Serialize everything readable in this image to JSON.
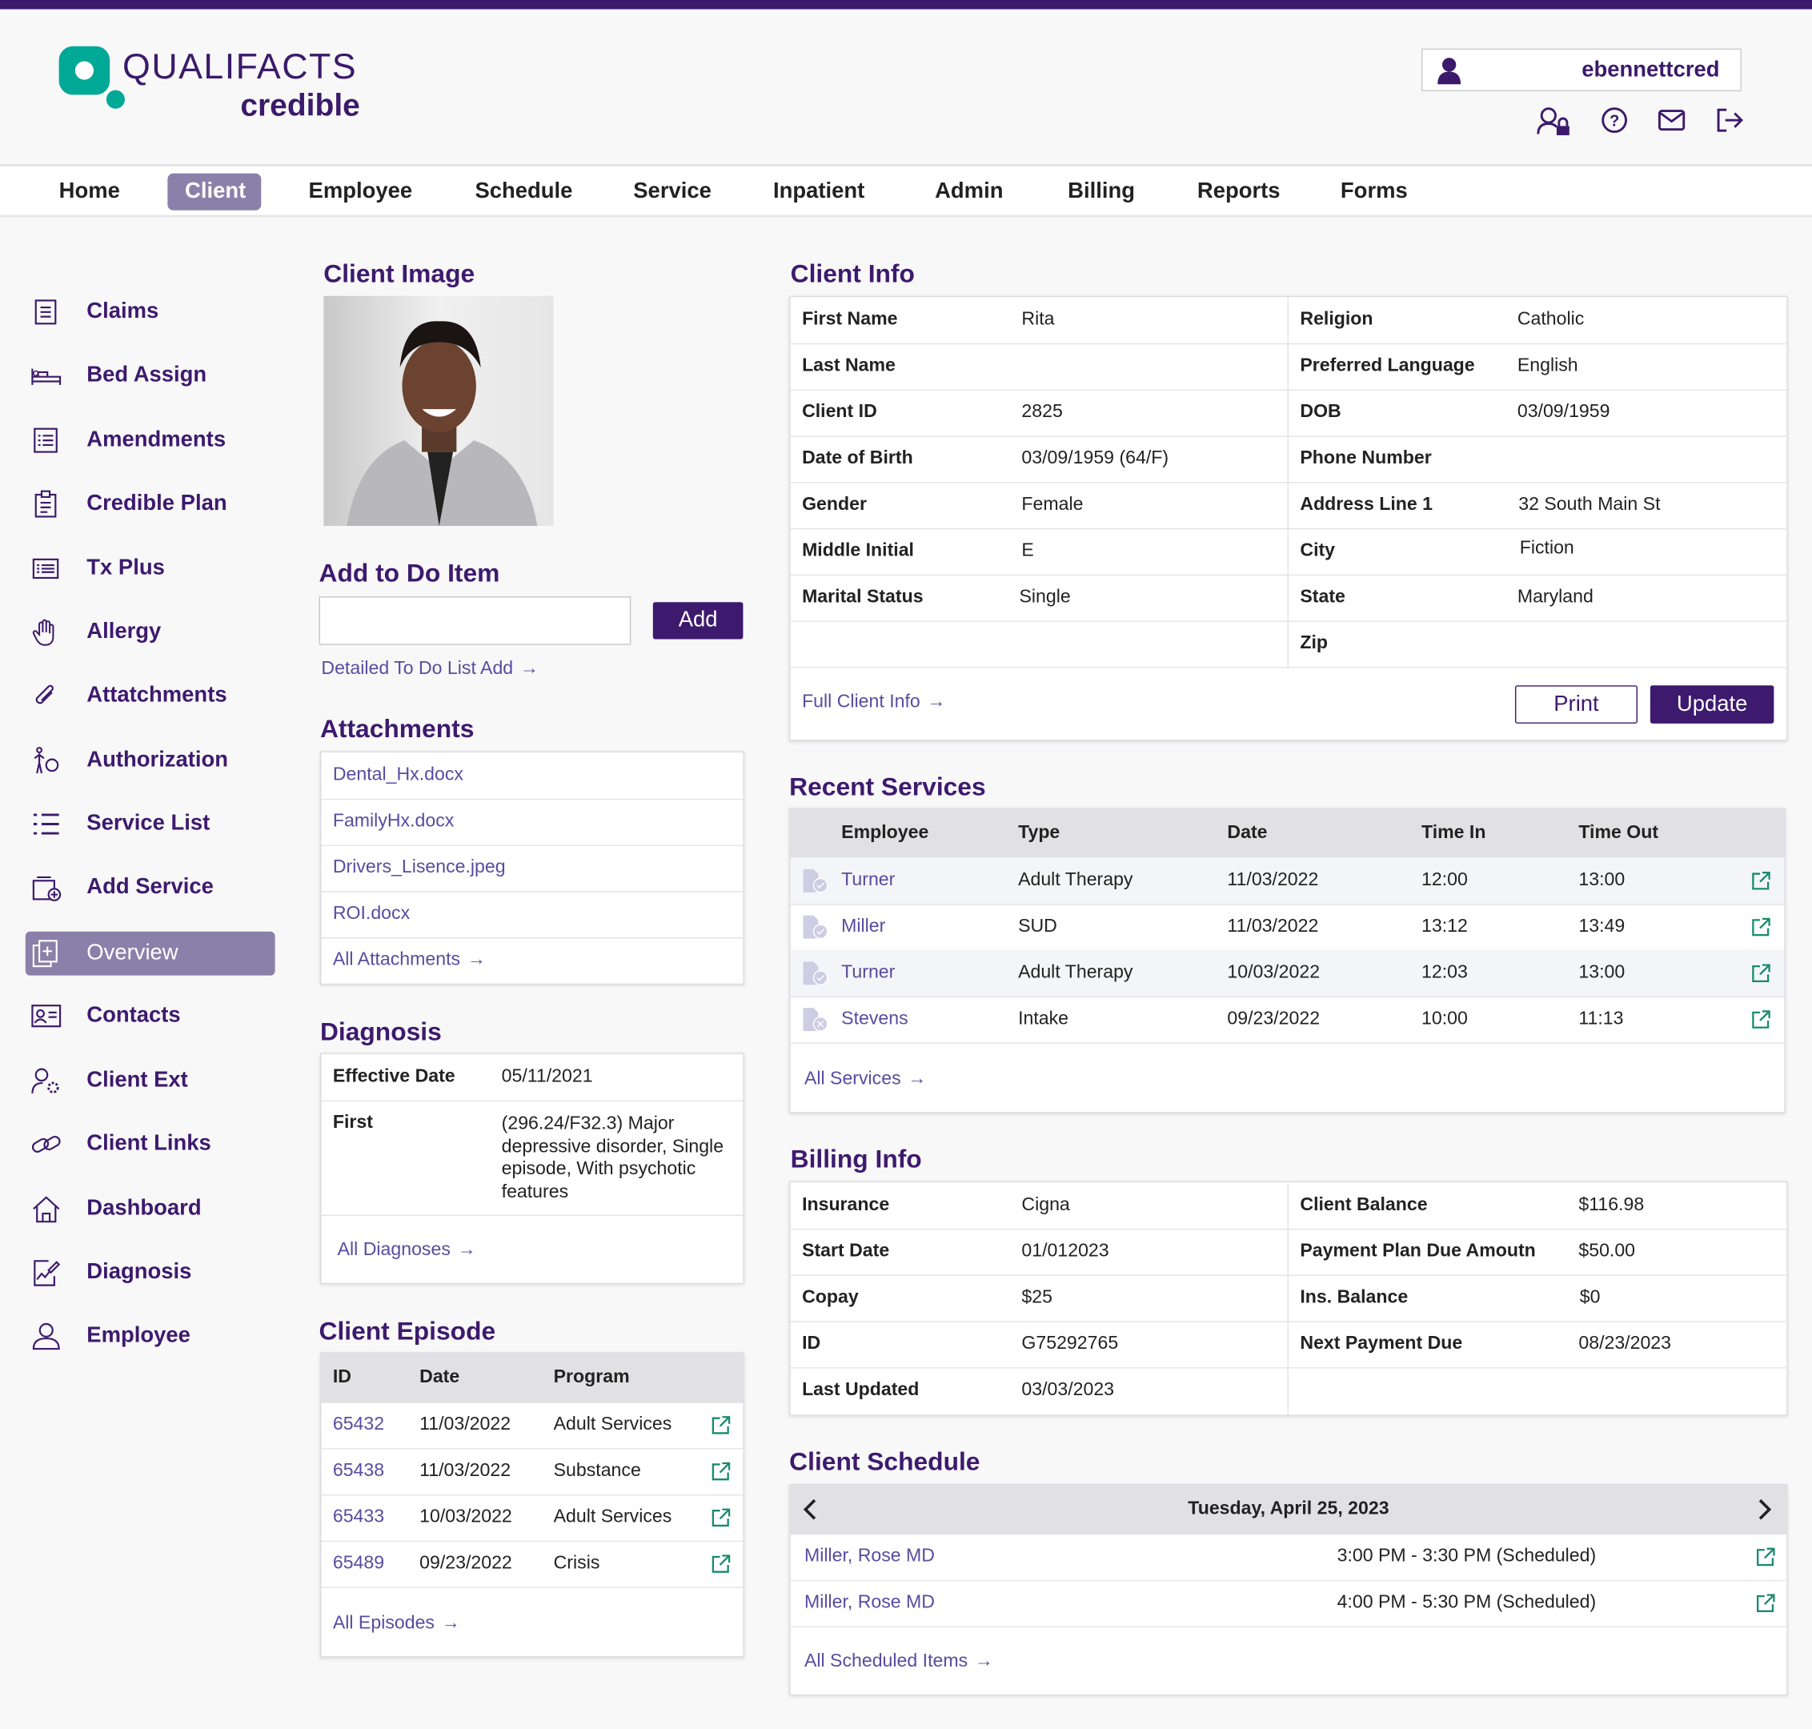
{
  "brand": {
    "logo_text": "QUALIFACTS",
    "logo_sub": "credible",
    "accent": "#3b1a6b",
    "teal": "#00a896"
  },
  "user": {
    "name": "ebennettcred",
    "icons": [
      "user-lock-icon",
      "help-icon",
      "mail-icon",
      "logout-icon"
    ]
  },
  "nav": [
    "Home",
    "Client",
    "Employee",
    "Schedule",
    "Service",
    "Inpatient",
    "Admin",
    "Billing",
    "Reports",
    "Forms"
  ],
  "nav_active": "Client",
  "sidebar": [
    "Claims",
    "Bed Assign",
    "Amendments",
    "Credible Plan",
    "Tx Plus",
    "Allergy",
    "Attatchments",
    "Authorization",
    "Service List",
    "Add Service",
    "Overview",
    "Contacts",
    "Client Ext",
    "Client Links",
    "Dashboard",
    "Diagnosis",
    "Employee"
  ],
  "sidebar_active": "Overview",
  "client_image": {
    "title": "Client Image"
  },
  "todo": {
    "title": "Add to Do Item",
    "input_value": "",
    "add_label": "Add",
    "detailed_link": "Detailed To Do List Add"
  },
  "attachments": {
    "title": "Attachments",
    "items": [
      "Dental_Hx.docx",
      "FamilyHx.docx",
      "Drivers_Lisence.jpeg",
      "ROI.docx"
    ],
    "all_link": "All Attachments"
  },
  "diagnosis": {
    "title": "Diagnosis",
    "effective_label": "Effective Date",
    "effective_value": "05/11/2021",
    "first_label": "First",
    "first_value": "(296.24/F32.3) Major depressive disorder, Single episode, With psychotic features",
    "all_link": "All Diagnoses"
  },
  "episode": {
    "title": "Client Episode",
    "headers": [
      "ID",
      "Date",
      "Program"
    ],
    "rows": [
      [
        "65432",
        "11/03/2022",
        "Adult Services"
      ],
      [
        "65438",
        "11/03/2022",
        "Substance"
      ],
      [
        "65433",
        "10/03/2022",
        "Adult Services"
      ],
      [
        "65489",
        "09/23/2022",
        "Crisis"
      ]
    ],
    "all_link": "All Episodes"
  },
  "client_info": {
    "title": "Client Info",
    "left": [
      [
        "First Name",
        "Rita"
      ],
      [
        "Last Name",
        ""
      ],
      [
        "Client ID",
        "2825"
      ],
      [
        "Date of Birth",
        "03/09/1959 (64/F)"
      ],
      [
        "Gender",
        "Female"
      ],
      [
        "Middle Initial",
        "E"
      ],
      [
        "Marital Status",
        "Single"
      ],
      [
        "",
        ""
      ]
    ],
    "right": [
      [
        "Religion",
        "Catholic"
      ],
      [
        "Preferred Language",
        "English"
      ],
      [
        "DOB",
        "03/09/1959"
      ],
      [
        "Phone Number",
        ""
      ],
      [
        "Address Line 1",
        "32 South Main St"
      ],
      [
        "City",
        "Fiction"
      ],
      [
        "State",
        "Maryland"
      ],
      [
        "Zip",
        ""
      ]
    ],
    "full_link": "Full Client Info",
    "print_label": "Print",
    "update_label": "Update"
  },
  "services": {
    "title": "Recent Services",
    "headers": [
      "Employee",
      "Type",
      "Date",
      "Time In",
      "Time Out"
    ],
    "rows": [
      [
        "Turner",
        "Adult Therapy",
        "11/03/2022",
        "12:00",
        "13:00"
      ],
      [
        "Miller",
        "SUD",
        "11/03/2022",
        "13:12",
        "13:49"
      ],
      [
        "Turner",
        "Adult Therapy",
        "10/03/2022",
        "12:03",
        "13:00"
      ],
      [
        "Stevens",
        "Intake",
        "09/23/2022",
        "10:00",
        "11:13"
      ]
    ],
    "status_icons": [
      "doc-check-icon",
      "doc-check-icon",
      "doc-check-icon",
      "doc-x-icon"
    ],
    "all_link": "All Services"
  },
  "billing": {
    "title": "Billing Info",
    "left": [
      [
        "Insurance",
        "Cigna"
      ],
      [
        "Start Date",
        "01/012023"
      ],
      [
        "Copay",
        "$25"
      ],
      [
        "ID",
        "G75292765"
      ],
      [
        "Last Updated",
        "03/03/2023"
      ]
    ],
    "right": [
      [
        "Client Balance",
        "$116.98"
      ],
      [
        "Payment Plan Due Amoutn",
        "$50.00"
      ],
      [
        "Ins. Balance",
        "$0"
      ],
      [
        "Next Payment Due",
        "08/23/2023"
      ],
      [
        "",
        ""
      ]
    ]
  },
  "schedule": {
    "title": "Client Schedule",
    "date": "Tuesday, April 25, 2023",
    "rows": [
      [
        "Miller, Rose MD",
        "3:00 PM - 3:30 PM (Scheduled)"
      ],
      [
        "Miller, Rose MD",
        "4:00 PM - 5:30 PM (Scheduled)"
      ]
    ],
    "all_link": "All Scheduled Items"
  }
}
